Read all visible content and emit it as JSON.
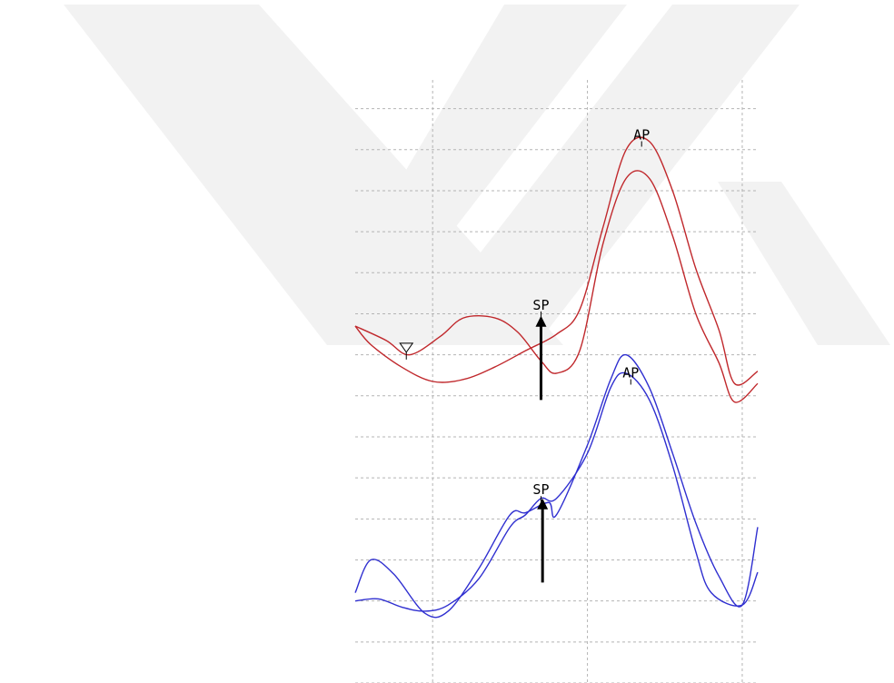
{
  "colors": {
    "red_traces": "#c0282c",
    "blue_traces": "#2f2fd0",
    "grid": "#b4b4b4",
    "arrows": "#000000",
    "watermark": "#f2f2f2"
  },
  "watermark": {
    "icon": "stylized-Y-logo"
  },
  "chart_data": {
    "type": "line",
    "title": "",
    "xlabel": "",
    "ylabel": "",
    "grid": true,
    "grid_style": "dashed",
    "x_range": [
      0,
      2.6
    ],
    "y_range": [
      0,
      14.7
    ],
    "x_gridlines": [
      0.5,
      1.5,
      2.5
    ],
    "y_gridlines": [
      0,
      1,
      2,
      3,
      4,
      5,
      6,
      7,
      8,
      9,
      10,
      11,
      12,
      13,
      14
    ],
    "series": [
      {
        "color": "#c0282c",
        "x": [
          0,
          0.1,
          0.3,
          0.5,
          0.7,
          0.9,
          1.1,
          1.3,
          1.45,
          1.6,
          1.75,
          1.9,
          2.05,
          2.2,
          2.35,
          2.45,
          2.6
        ],
        "y": [
          8.7,
          8.25,
          7.7,
          7.35,
          7.4,
          7.7,
          8.1,
          8.5,
          9.1,
          11.1,
          13.0,
          13.2,
          12.0,
          10.1,
          8.6,
          7.3,
          7.6
        ]
      },
      {
        "color": "#c0282c",
        "x": [
          0,
          0.2,
          0.35,
          0.55,
          0.7,
          0.9,
          1.05,
          1.2,
          1.3,
          1.45,
          1.6,
          1.75,
          1.9,
          2.05,
          2.2,
          2.35,
          2.45,
          2.6
        ],
        "y": [
          8.7,
          8.35,
          8.0,
          8.45,
          8.9,
          8.9,
          8.55,
          7.85,
          7.55,
          8.1,
          10.7,
          12.3,
          12.3,
          10.9,
          9.0,
          7.8,
          6.85,
          7.3
        ]
      },
      {
        "color": "#2f2fd0",
        "x": [
          0,
          0.15,
          0.3,
          0.45,
          0.6,
          0.8,
          1.0,
          1.1,
          1.2,
          1.3,
          1.5,
          1.65,
          1.75,
          1.9,
          2.05,
          2.2,
          2.3,
          2.5,
          2.6
        ],
        "y": [
          2.0,
          2.05,
          1.85,
          1.75,
          1.9,
          2.55,
          3.8,
          4.1,
          4.5,
          4.5,
          5.6,
          7.2,
          7.55,
          6.9,
          5.3,
          3.2,
          2.2,
          1.9,
          2.7
        ]
      },
      {
        "color": "#2f2fd0",
        "x": [
          0,
          0.1,
          0.25,
          0.45,
          0.6,
          0.8,
          1.0,
          1.1,
          1.25,
          1.3,
          1.5,
          1.65,
          1.75,
          1.9,
          2.05,
          2.2,
          2.35,
          2.5,
          2.6
        ],
        "y": [
          2.2,
          3.0,
          2.65,
          1.7,
          1.75,
          2.8,
          4.1,
          4.15,
          4.4,
          4.1,
          5.8,
          7.4,
          8.0,
          7.2,
          5.6,
          3.9,
          2.6,
          1.9,
          3.8
        ]
      }
    ],
    "annotations": [
      {
        "text": "AP",
        "x": 1.85,
        "y": 13.25
      },
      {
        "text": "SP",
        "x": 1.2,
        "y": 9.1
      },
      {
        "text": "AP",
        "x": 1.78,
        "y": 7.45
      },
      {
        "text": "SP",
        "x": 1.2,
        "y": 4.6
      }
    ],
    "arrows": [
      {
        "x": 1.2,
        "from_y": 6.9,
        "to_y": 8.95
      },
      {
        "x": 1.21,
        "from_y": 2.45,
        "to_y": 4.5
      }
    ],
    "marker": {
      "symbol": "down-triangle",
      "x": 0.33,
      "y": 8.15
    }
  }
}
